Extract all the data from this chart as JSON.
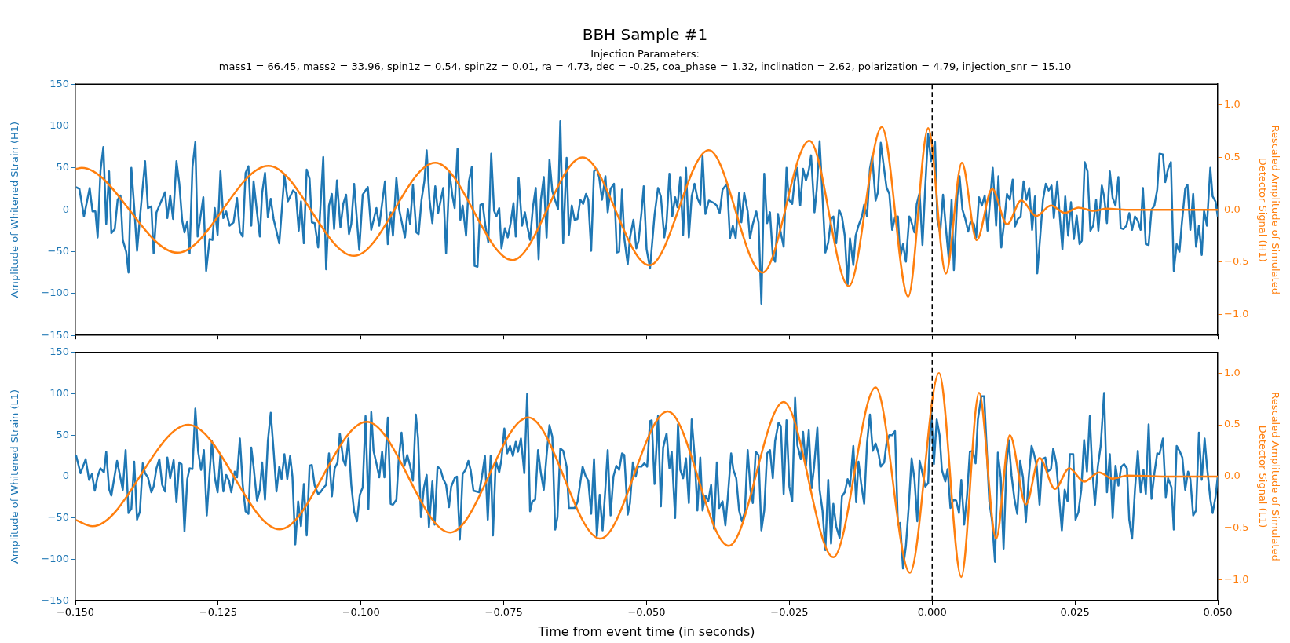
{
  "chart_data": [
    {
      "type": "line",
      "title": "BBH Sample #1",
      "subtitle": "Injection Parameters:\nmass1 = 66.45, mass2 = 33.96, spin1z = 0.54, spin2z = 0.01, ra = 4.73, dec = -0.25, coa_phase = 1.32, inclination = 2.62, polarization = 4.79, injection_snr = 15.10",
      "ylabel": "Amplitude of Whitened Strain (H1)",
      "y2label": "Rescaled Amplitude of Simulated\nDetector Signal (H1)",
      "xlim": [
        -0.15,
        0.05
      ],
      "xticks": [
        {
          "value": -0.15,
          "label": null
        },
        {
          "value": -0.125,
          "label": null
        },
        {
          "value": -0.1,
          "label": null
        },
        {
          "value": -0.075,
          "label": null
        },
        {
          "value": -0.05,
          "label": null
        },
        {
          "value": -0.025,
          "label": null
        },
        {
          "value": 0,
          "label": null
        },
        {
          "value": 0.025,
          "label": null
        },
        {
          "value": 0.05,
          "label": null
        }
      ],
      "ylim": [
        -150,
        150
      ],
      "yticks": [
        {
          "value": -150,
          "label": "−150"
        },
        {
          "value": -100,
          "label": "−100"
        },
        {
          "value": -50,
          "label": "−50"
        },
        0,
        50,
        100,
        150
      ],
      "y2lim": [
        -1.2,
        1.2
      ],
      "y2ticks": [
        {
          "value": -1,
          "label": "−1.0"
        },
        {
          "value": -0.5,
          "label": "−0.5"
        },
        {
          "value": 0,
          "label": "0.0"
        },
        {
          "value": 0.5,
          "label": "0.5"
        },
        {
          "value": 1,
          "label": "1.0"
        }
      ],
      "tick_labels": "y",
      "ref_lines": [
        {
          "axis": "x",
          "value": 0,
          "color": "#000000",
          "line_style": "dashed"
        }
      ],
      "series": [
        {
          "color": "#1f77b4",
          "x": [
            -0.1499,
            -0.1493,
            -0.1485,
            -0.1475,
            -0.147,
            -0.1465,
            -0.1461,
            -0.1456,
            -0.1451,
            -0.1446,
            -0.1441,
            -0.1437,
            -0.1431,
            -0.1426,
            -0.1421,
            -0.1417,
            -0.1411,
            -0.1407,
            -0.1402,
            -0.1397,
            -0.1392,
            -0.1386,
            -0.1378,
            -0.1373,
            -0.1367,
            -0.1363,
            -0.1358,
            -0.1343,
            -0.1339,
            -0.1334,
            -0.1329,
            -0.1323,
            -0.1318,
            -0.1313,
            -0.1309,
            -0.1304,
            -0.13,
            -0.1295,
            -0.129,
            -0.1286,
            -0.1276,
            -0.1271,
            -0.1265,
            -0.126,
            -0.1256,
            -0.1251,
            -0.1246,
            -0.1241,
            -0.1236,
            -0.123,
            -0.1223,
            -0.1217,
            -0.1212,
            -0.1207,
            -0.1202,
            -0.1197,
            -0.1192,
            -0.1188,
            -0.1182,
            -0.1177,
            -0.1173,
            -0.1168,
            -0.1163,
            -0.1158,
            -0.1153,
            -0.1143,
            -0.1134,
            -0.1128,
            -0.1119,
            -0.1114,
            -0.1109,
            -0.1105,
            -0.11,
            -0.1095,
            -0.109,
            -0.1086,
            -0.1081,
            -0.1075,
            -0.1066,
            -0.1061,
            -0.1056,
            -0.1051,
            -0.1047,
            -0.1042,
            -0.1036,
            -0.1031,
            -0.1026,
            -0.1021,
            -0.1017,
            -0.1012,
            -0.1003,
            -0.0997,
            -0.0988,
            -0.0982,
            -0.0973,
            -0.0968,
            -0.0958,
            -0.0953,
            -0.0948,
            -0.0944,
            -0.0938,
            -0.0933,
            -0.0923,
            -0.0918,
            -0.0914,
            -0.0909,
            -0.0903,
            -0.0899,
            -0.0894,
            -0.0889,
            -0.0885,
            -0.088,
            -0.0875,
            -0.087,
            -0.0865,
            -0.0856,
            -0.0851,
            -0.0845,
            -0.084,
            -0.0836,
            -0.0831,
            -0.0826,
            -0.0822,
            -0.0816,
            -0.0811,
            -0.0806,
            -0.0801,
            -0.0796,
            -0.0791,
            -0.0787,
            -0.0782,
            -0.0777,
            -0.0772,
            -0.0767,
            -0.0763,
            -0.0758,
            -0.0754,
            -0.0748,
            -0.0743,
            -0.0738,
            -0.0733,
            -0.0729,
            -0.0724,
            -0.0718,
            -0.0713,
            -0.0709,
            -0.0704,
            -0.0699,
            -0.0694,
            -0.0689,
            -0.0685,
            -0.068,
            -0.0675,
            -0.067,
            -0.0665,
            -0.066,
            -0.0655,
            -0.0651,
            -0.0646,
            -0.064,
            -0.0636,
            -0.0631,
            -0.0626,
            -0.0621,
            -0.0616,
            -0.0611,
            -0.0606,
            -0.0602,
            -0.0597,
            -0.0592,
            -0.0587,
            -0.0583,
            -0.0578,
            -0.0572,
            -0.0568,
            -0.0563,
            -0.0557,
            -0.0552,
            -0.0548,
            -0.0543,
            -0.0539,
            -0.0533,
            -0.0529,
            -0.0523,
            -0.0518,
            -0.0514,
            -0.0509,
            -0.0505,
            -0.05,
            -0.0494,
            -0.0486,
            -0.048,
            -0.0475,
            -0.0469,
            -0.0465,
            -0.046,
            -0.0455,
            -0.045,
            -0.0446,
            -0.0441,
            -0.0436,
            -0.0431,
            -0.0426,
            -0.0421,
            -0.0416,
            -0.0411,
            -0.0406,
            -0.0402,
            -0.0397,
            -0.0391,
            -0.0382,
            -0.0377,
            -0.0372,
            -0.0367,
            -0.0359,
            -0.0354,
            -0.0349,
            -0.0344,
            -0.0338,
            -0.0334,
            -0.0329,
            -0.0323,
            -0.0319,
            -0.0314,
            -0.0308,
            -0.0304,
            -0.0299,
            -0.0294,
            -0.0289,
            -0.0284,
            -0.0279,
            -0.0275,
            -0.027,
            -0.0265,
            -0.026,
            -0.0255,
            -0.0251,
            -0.0245,
            -0.0241,
            -0.0236,
            -0.0231,
            -0.0226,
            -0.0221,
            -0.0216,
            -0.0212,
            -0.0206,
            -0.0202,
            -0.0197,
            -0.0192,
            -0.0187,
            -0.0182,
            -0.0177,
            -0.0173,
            -0.0168,
            -0.0163,
            -0.0158,
            -0.0153,
            -0.0148,
            -0.0144,
            -0.0138,
            -0.0134,
            -0.0129,
            -0.0123,
            -0.0119,
            -0.0114,
            -0.0109,
            -0.0105,
            -0.0099,
            -0.0095,
            -0.009,
            -0.0084,
            -0.008,
            -0.0075,
            -0.007,
            -0.0065,
            -0.006,
            -0.0056,
            -0.0051,
            -0.0046,
            -0.004,
            -0.0037,
            -0.0031,
            -0.0027,
            -0.0022,
            -0.0017,
            -0.0012,
            -0.0007,
            -0.0002,
            0.0005,
            0.0009,
            0.0014,
            0.0019,
            0.0024,
            0.0029,
            0.0034,
            0.0038,
            0.0044,
            0.0048,
            0.0053,
            0.0058,
            0.0063,
            0.0067,
            0.0073,
            0.0077,
            0.0082,
            0.0087,
            0.0092,
            0.0097,
            0.0102,
            0.0106,
            0.0112,
            0.0116,
            0.0121,
            0.0126,
            0.0131,
            0.0136,
            0.0141,
            0.0145,
            0.015,
            0.0155,
            0.016,
            0.0165,
            0.017,
            0.0175,
            0.018,
            0.0184,
            0.0189,
            0.0194,
            0.0199,
            0.0204,
            0.0209,
            0.0213,
            0.0219,
            0.0223,
            0.0228,
            0.0233,
            0.0238,
            0.0243,
            0.0248,
            0.0253,
            0.0258,
            0.0262,
            0.0267,
            0.0272,
            0.0277,
            0.0282,
            0.0287,
            0.0291,
            0.0297,
            0.0301,
            0.0306,
            0.0311,
            0.0316,
            0.0321,
            0.0326,
            0.033,
            0.0335,
            0.034,
            0.0345,
            0.035,
            0.0355,
            0.036,
            0.0365,
            0.0369,
            0.0374,
            0.0379,
            0.0384,
            0.0389,
            0.0394,
            0.0398,
            0.0404,
            0.0408,
            0.0413,
            0.0418,
            0.0423,
            0.0428,
            0.0433,
            0.0437,
            0.0443,
            0.0447,
            0.0452,
            0.0457,
            0.0462,
            0.0467,
            0.0472,
            0.0476,
            0.0481,
            0.0487,
            0.0491,
            0.0496,
            0.05
          ],
          "values": [
            27,
            25,
            -8,
            26,
            -2,
            -2,
            -33,
            47,
            75,
            -17,
            46,
            -28,
            -23,
            12,
            17,
            -36,
            -50,
            -75,
            50,
            3,
            -49,
            -2,
            58,
            2,
            4,
            -52,
            -3,
            21,
            -10,
            17,
            -11,
            58,
            31,
            -13,
            -27,
            -14,
            -52,
            51,
            81,
            -32,
            15,
            -73,
            -35,
            -36,
            2,
            -30,
            46,
            -10,
            -2,
            -19,
            -15,
            14,
            -26,
            -32,
            44,
            52,
            -19,
            34,
            -3,
            -32,
            20,
            44,
            -9,
            13,
            -11,
            -40,
            41,
            10,
            23,
            20,
            -25,
            10,
            -40,
            48,
            37,
            -15,
            -16,
            -45,
            63,
            -71,
            5,
            19,
            -23,
            35,
            -21,
            7,
            18,
            -29,
            -17,
            31,
            -48,
            18,
            27,
            -24,
            2,
            -19,
            34,
            -41,
            -3,
            -31,
            38,
            0,
            -33,
            1,
            -17,
            30,
            -27,
            -29,
            12,
            34,
            71,
            12,
            -16,
            28,
            -4,
            26,
            -52,
            45,
            17,
            2,
            73,
            -12,
            5,
            -31,
            34,
            51,
            -67,
            -68,
            6,
            7,
            -20,
            -39,
            67,
            -1,
            -8,
            2,
            -46,
            -22,
            -33,
            -16,
            8,
            -32,
            38,
            -19,
            -3,
            -19,
            -36,
            3,
            26,
            -59,
            12,
            39,
            -33,
            60,
            22,
            11,
            1,
            106,
            -40,
            62,
            -30,
            5,
            -12,
            -11,
            12,
            7,
            19,
            12,
            -49,
            46,
            49,
            39,
            12,
            40,
            -3,
            25,
            31,
            -51,
            -50,
            24,
            -34,
            -65,
            -33,
            -12,
            -46,
            -37,
            -4,
            28,
            -47,
            -70,
            -6,
            26,
            16,
            -33,
            -15,
            43,
            -8,
            15,
            3,
            39,
            -30,
            50,
            -33,
            16,
            31,
            14,
            6,
            65,
            -5,
            11,
            8,
            5,
            -4,
            24,
            31,
            -34,
            -19,
            -34,
            20,
            -15,
            20,
            -2,
            -34,
            -17,
            -2,
            -15,
            -112,
            43,
            -16,
            -3,
            -55,
            -62,
            -5,
            -28,
            -44,
            50,
            12,
            7,
            34,
            50,
            5,
            49,
            35,
            47,
            65,
            -3,
            25,
            82,
            16,
            -51,
            -39,
            -11,
            -8,
            -40,
            0,
            -8,
            -31,
            -89,
            -34,
            -66,
            -31,
            -19,
            -8,
            6,
            -8,
            49,
            64,
            11,
            21,
            80,
            48,
            27,
            19,
            -24,
            -9,
            -8,
            -57,
            -41,
            -62,
            -8,
            -13,
            -27,
            7,
            20,
            -42,
            29,
            91,
            58,
            81,
            -11,
            -28,
            18,
            -22,
            -58,
            12,
            -72,
            16,
            40,
            0,
            -11,
            -26,
            -15,
            -17,
            -33,
            15,
            5,
            17,
            -25,
            16,
            50,
            -19,
            40,
            -45,
            -15,
            19,
            12,
            36,
            -20,
            -11,
            -8,
            34,
            12,
            26,
            -24,
            16,
            -76,
            -33,
            12,
            31,
            23,
            29,
            -10,
            34,
            -4,
            -47,
            16,
            -31,
            9,
            -35,
            -7,
            -41,
            -37,
            57,
            46,
            -25,
            -19,
            12,
            -25,
            29,
            16,
            -16,
            46,
            14,
            5,
            39,
            -22,
            -23,
            -19,
            -4,
            -24,
            -8,
            -13,
            -24,
            26,
            -41,
            -42,
            0,
            5,
            24,
            67,
            66,
            33,
            49,
            57,
            -73,
            -41,
            -50,
            -17,
            25,
            30,
            -24,
            19,
            -44,
            -19,
            -54,
            -1,
            -19,
            50,
            16,
            10,
            -8
          ]
        },
        {
          "color": "#ff7f0e",
          "axis": "y2",
          "x": [
            -0.1499,
            -0.1489,
            -0.1321,
            -0.1162,
            -0.1012,
            -0.087,
            -0.0735,
            -0.0612,
            -0.0495,
            -0.0391,
            -0.0297,
            -0.0215,
            -0.0146,
            -0.0088,
            -0.0042,
            -0.0007,
            0.0024,
            0.0052,
            0.0078,
            0.0105,
            0.0131,
            0.0156,
            0.0182,
            0.0208,
            0.0232,
            0.0256,
            0.0282,
            0.0306,
            0.034,
            0.05
          ],
          "values": [
            0.39,
            0.4,
            -0.41,
            0.42,
            -0.44,
            0.45,
            -0.48,
            0.5,
            -0.53,
            0.57,
            -0.6,
            0.66,
            -0.73,
            0.79,
            -0.83,
            0.78,
            -0.61,
            0.45,
            -0.29,
            0.2,
            -0.14,
            0.09,
            -0.06,
            0.04,
            -0.03,
            0.02,
            -0.01,
            0.01,
            0,
            0
          ]
        }
      ]
    },
    {
      "type": "line",
      "xlabel": "Time from event time (in seconds)",
      "ylabel": "Amplitude of Whitened Strain (L1)",
      "y2label": "Rescaled Amplitude of Simulated\nDetector Signal (L1)",
      "xlim": [
        -0.15,
        0.05
      ],
      "xticks": [
        {
          "value": -0.15,
          "label": "−0.150"
        },
        {
          "value": -0.125,
          "label": "−0.125"
        },
        {
          "value": -0.1,
          "label": "−0.100"
        },
        {
          "value": -0.075,
          "label": "−0.075"
        },
        {
          "value": -0.05,
          "label": "−0.050"
        },
        {
          "value": -0.025,
          "label": "−0.025"
        },
        {
          "value": 0,
          "label": "0.000"
        },
        {
          "value": 0.025,
          "label": "0.025"
        },
        {
          "value": 0.05,
          "label": "0.050"
        }
      ],
      "ylim": [
        -150,
        150
      ],
      "yticks": [
        {
          "value": -150,
          "label": "−150"
        },
        {
          "value": -100,
          "label": "−100"
        },
        {
          "value": -50,
          "label": "−50"
        },
        0,
        50,
        100,
        150
      ],
      "y2lim": [
        -1.2,
        1.2
      ],
      "y2ticks": [
        {
          "value": -1,
          "label": "−1.0"
        },
        {
          "value": -0.5,
          "label": "−0.5"
        },
        {
          "value": 0,
          "label": "0.0"
        },
        {
          "value": 0.5,
          "label": "0.5"
        },
        {
          "value": 1,
          "label": "1.0"
        }
      ],
      "ref_lines": [
        {
          "axis": "x",
          "value": 0,
          "color": "#000000",
          "line_style": "dashed"
        }
      ],
      "series": [
        {
          "color": "#1f77b4",
          "x": [
            -0.1499,
            -0.1491,
            -0.1482,
            -0.1476,
            -0.1471,
            -0.1466,
            -0.1461,
            -0.1456,
            -0.145,
            -0.1446,
            -0.1441,
            -0.1437,
            -0.1427,
            -0.1417,
            -0.1412,
            -0.1407,
            -0.1402,
            -0.1397,
            -0.1392,
            -0.1387,
            -0.1382,
            -0.1378,
            -0.1373,
            -0.1367,
            -0.1363,
            -0.1358,
            -0.1353,
            -0.1348,
            -0.1343,
            -0.1339,
            -0.1334,
            -0.1328,
            -0.1323,
            -0.1318,
            -0.1314,
            -0.1309,
            -0.1304,
            -0.13,
            -0.1295,
            -0.129,
            -0.1285,
            -0.128,
            -0.1275,
            -0.127,
            -0.1265,
            -0.1261,
            -0.1256,
            -0.1251,
            -0.1246,
            -0.1241,
            -0.1236,
            -0.1231,
            -0.1227,
            -0.1221,
            -0.1217,
            -0.1212,
            -0.1207,
            -0.1202,
            -0.1197,
            -0.1192,
            -0.1188,
            -0.1182,
            -0.1177,
            -0.1173,
            -0.1168,
            -0.1163,
            -0.1158,
            -0.1153,
            -0.1148,
            -0.1143,
            -0.1139,
            -0.1134,
            -0.1129,
            -0.1124,
            -0.112,
            -0.1115,
            -0.111,
            -0.1105,
            -0.11,
            -0.1095,
            -0.109,
            -0.1086,
            -0.1081,
            -0.1075,
            -0.1071,
            -0.1066,
            -0.1061,
            -0.1056,
            -0.1051,
            -0.1046,
            -0.1041,
            -0.1037,
            -0.1031,
            -0.1027,
            -0.1022,
            -0.1017,
            -0.1012,
            -0.1007,
            -0.1002,
            -0.0997,
            -0.0992,
            -0.0987,
            -0.0982,
            -0.0978,
            -0.0973,
            -0.0968,
            -0.0963,
            -0.0959,
            -0.0953,
            -0.0948,
            -0.0944,
            -0.0938,
            -0.0934,
            -0.0929,
            -0.0924,
            -0.0919,
            -0.0914,
            -0.0909,
            -0.0904,
            -0.09,
            -0.0895,
            -0.089,
            -0.0885,
            -0.0881,
            -0.0875,
            -0.0871,
            -0.0866,
            -0.0861,
            -0.0856,
            -0.0851,
            -0.0846,
            -0.0842,
            -0.0836,
            -0.0832,
            -0.0827,
            -0.0822,
            -0.0817,
            -0.0812,
            -0.0808,
            -0.0803,
            -0.0793,
            -0.0788,
            -0.0783,
            -0.0778,
            -0.0773,
            -0.0769,
            -0.0764,
            -0.0758,
            -0.0754,
            -0.0749,
            -0.0744,
            -0.0739,
            -0.0734,
            -0.0729,
            -0.0725,
            -0.072,
            -0.0714,
            -0.0709,
            -0.0704,
            -0.07,
            -0.0695,
            -0.069,
            -0.0685,
            -0.068,
            -0.0675,
            -0.067,
            -0.0665,
            -0.066,
            -0.0656,
            -0.0651,
            -0.0646,
            -0.064,
            -0.0636,
            -0.0626,
            -0.0621,
            -0.0612,
            -0.0607,
            -0.0602,
            -0.0597,
            -0.0592,
            -0.0587,
            -0.0582,
            -0.0577,
            -0.0572,
            -0.0568,
            -0.0563,
            -0.0558,
            -0.0553,
            -0.0548,
            -0.0543,
            -0.0539,
            -0.0533,
            -0.0529,
            -0.0524,
            -0.0519,
            -0.0515,
            -0.0509,
            -0.0504,
            -0.0499,
            -0.0494,
            -0.0491,
            -0.0486,
            -0.048,
            -0.0475,
            -0.0471,
            -0.0465,
            -0.046,
            -0.0456,
            -0.045,
            -0.0445,
            -0.0441,
            -0.0436,
            -0.0431,
            -0.0426,
            -0.0421,
            -0.0416,
            -0.0411,
            -0.0406,
            -0.0402,
            -0.0397,
            -0.0392,
            -0.0387,
            -0.0382,
            -0.0377,
            -0.0373,
            -0.0367,
            -0.0362,
            -0.0358,
            -0.0352,
            -0.0348,
            -0.0343,
            -0.0338,
            -0.0333,
            -0.0328,
            -0.0323,
            -0.0318,
            -0.0314,
            -0.0309,
            -0.0304,
            -0.0299,
            -0.0294,
            -0.0289,
            -0.0284,
            -0.0279,
            -0.0275,
            -0.0269,
            -0.0265,
            -0.026,
            -0.0255,
            -0.025,
            -0.0245,
            -0.024,
            -0.0236,
            -0.023,
            -0.0226,
            -0.0221,
            -0.0216,
            -0.0211,
            -0.0207,
            -0.0201,
            -0.0197,
            -0.0192,
            -0.0187,
            -0.0182,
            -0.0177,
            -0.0173,
            -0.0168,
            -0.0162,
            -0.0158,
            -0.0153,
            -0.0148,
            -0.0144,
            -0.0138,
            -0.0133,
            -0.0129,
            -0.0124,
            -0.0119,
            -0.0114,
            -0.0109,
            -0.0104,
            -0.0099,
            -0.0094,
            -0.009,
            -0.0084,
            -0.008,
            -0.0075,
            -0.007,
            -0.0065,
            -0.006,
            -0.0056,
            -0.0051,
            -0.0046,
            -0.0041,
            -0.0036,
            -0.0031,
            -0.0026,
            -0.0022,
            -0.0017,
            -0.0012,
            -0.0007,
            -0.0002,
            0.0003,
            0.0008,
            0.0013,
            0.0017,
            0.0023,
            0.0027,
            0.0032,
            0.0037,
            0.0042,
            0.0047,
            0.0051,
            0.0056,
            0.0061,
            0.0066,
            0.0071,
            0.0076,
            0.008,
            0.0086,
            0.0091,
            0.0095,
            0.01,
            0.0105,
            0.011,
            0.0115,
            0.012,
            0.0125,
            0.013,
            0.0134,
            0.0139,
            0.0144,
            0.0149,
            0.0154,
            0.0159,
            0.0164,
            0.0169,
            0.0174,
            0.0178,
            0.0183,
            0.0188,
            0.0193,
            0.0198,
            0.0202,
            0.0208,
            0.0212,
            0.0217,
            0.0222,
            0.0227,
            0.0232,
            0.0237,
            0.0241,
            0.0247,
            0.0251,
            0.0256,
            0.0261,
            0.0266,
            0.0271,
            0.0276,
            0.028,
            0.0285,
            0.029,
            0.0295,
            0.0301,
            0.0306,
            0.0311,
            0.0316,
            0.0321,
            0.0326,
            0.0331,
            0.0336,
            0.0341,
            0.0345,
            0.035,
            0.0355,
            0.036,
            0.0365,
            0.037,
            0.0374,
            0.0379,
            0.0384,
            0.0389,
            0.0394,
            0.0398,
            0.0404,
            0.0409,
            0.0413,
            0.0419,
            0.0423,
            0.0428,
            0.0433,
            0.0438,
            0.0443,
            0.0448,
            0.0452,
            0.0457,
            0.0462,
            0.0467,
            0.0472,
            0.0477,
            0.0481,
            0.0487,
            0.0491,
            0.0496,
            0.05
          ],
          "values": [
            26,
            4,
            21,
            -4,
            3,
            -17,
            0,
            10,
            5,
            30,
            -15,
            -23,
            19,
            -16,
            32,
            -44,
            -39,
            18,
            -52,
            -42,
            16,
            4,
            -1,
            -19,
            -12,
            10,
            21,
            -10,
            -18,
            23,
            -2,
            20,
            -31,
            17,
            15,
            -66,
            -3,
            10,
            9,
            82,
            30,
            8,
            32,
            -47,
            4,
            43,
            -1,
            -19,
            26,
            -18,
            2,
            -5,
            -19,
            6,
            -1,
            46,
            -10,
            -42,
            -45,
            35,
            12,
            -29,
            -16,
            17,
            -28,
            43,
            77,
            32,
            -18,
            12,
            -3,
            27,
            -3,
            25,
            0,
            -82,
            -30,
            -60,
            -9,
            -71,
            13,
            14,
            -11,
            -21,
            -19,
            -14,
            -10,
            28,
            -24,
            10,
            17,
            52,
            20,
            13,
            46,
            -10,
            -42,
            -54,
            -22,
            -13,
            73,
            -39,
            78,
            31,
            16,
            -1,
            30,
            -1,
            71,
            -33,
            -34,
            -28,
            20,
            53,
            13,
            26,
            13,
            -5,
            75,
            46,
            -49,
            -14,
            2,
            -61,
            -6,
            -58,
            12,
            9,
            -3,
            -10,
            -37,
            -12,
            -2,
            0,
            -76,
            3,
            8,
            19,
            8,
            -17,
            -19,
            1,
            25,
            -52,
            25,
            -71,
            19,
            5,
            21,
            58,
            28,
            37,
            25,
            42,
            30,
            46,
            4,
            100,
            -42,
            -30,
            -28,
            32,
            4,
            -16,
            26,
            62,
            48,
            -64,
            -49,
            34,
            31,
            12,
            -38,
            -38,
            -31,
            12,
            1,
            -5,
            -45,
            21,
            -72,
            -22,
            -65,
            -13,
            32,
            -47,
            0,
            13,
            8,
            28,
            26,
            -46,
            -32,
            17,
            0,
            12,
            12,
            16,
            12,
            67,
            68,
            -9,
            73,
            -36,
            35,
            52,
            10,
            30,
            -50,
            63,
            8,
            -2,
            22,
            -32,
            69,
            26,
            -41,
            23,
            -41,
            -23,
            -30,
            -10,
            -63,
            17,
            -38,
            -30,
            -59,
            -27,
            28,
            8,
            -2,
            -41,
            -54,
            -43,
            32,
            -16,
            -32,
            30,
            26,
            -65,
            -41,
            28,
            32,
            -2,
            43,
            65,
            61,
            -21,
            68,
            -12,
            -30,
            95,
            38,
            21,
            54,
            13,
            56,
            -14,
            10,
            59,
            -16,
            -41,
            -89,
            -4,
            -81,
            -33,
            -60,
            -74,
            -24,
            -19,
            -3,
            -12,
            37,
            -31,
            18,
            -10,
            -33,
            41,
            75,
            31,
            40,
            28,
            12,
            17,
            40,
            50,
            50,
            55,
            -58,
            -56,
            -111,
            -84,
            -36,
            22,
            -3,
            -54,
            19,
            4,
            -12,
            -8,
            85,
            15,
            69,
            50,
            8,
            -6,
            9,
            -38,
            -28,
            -29,
            -44,
            -4,
            -58,
            -23,
            30,
            31,
            16,
            69,
            97,
            97,
            41,
            -30,
            -54,
            -103,
            29,
            -1,
            -87,
            13,
            44,
            1,
            -27,
            -45,
            19,
            -1,
            -55,
            -1,
            37,
            28,
            13,
            -34,
            21,
            23,
            6,
            9,
            34,
            17,
            -23,
            -65,
            -16,
            -30,
            27,
            27,
            -52,
            -43,
            -16,
            44,
            6,
            73,
            12,
            -34,
            12,
            37,
            101,
            -19,
            27,
            -50,
            13,
            -11,
            12,
            15,
            10,
            -52,
            -75,
            -16,
            31,
            -19,
            8,
            -21,
            63,
            -27,
            4,
            28,
            27,
            46,
            -25,
            -2,
            -13,
            -64,
            37,
            31,
            23,
            -16,
            6,
            -3,
            -47,
            -41,
            53,
            -4,
            46,
            13,
            -27,
            -44,
            -25,
            0
          ]
        },
        {
          "color": "#ff7f0e",
          "axis": "y2",
          "x": [
            -0.1499,
            -0.147,
            -0.1302,
            -0.1142,
            -0.099,
            -0.0844,
            -0.0707,
            -0.0581,
            -0.0463,
            -0.0356,
            -0.026,
            -0.0173,
            -0.0099,
            -0.0039,
            0.0012,
            0.0051,
            0.0082,
            0.0112,
            0.0136,
            0.0164,
            0.0188,
            0.0215,
            0.024,
            0.0266,
            0.0292,
            0.0316,
            0.0342,
            0.0404,
            0.05
          ],
          "values": [
            -0.42,
            -0.48,
            0.5,
            -0.51,
            0.53,
            -0.54,
            0.57,
            -0.6,
            0.63,
            -0.67,
            0.72,
            -0.78,
            0.86,
            -0.93,
            1.0,
            -0.97,
            0.81,
            -0.6,
            0.4,
            -0.27,
            0.18,
            -0.12,
            0.08,
            -0.05,
            0.04,
            -0.02,
            0.01,
            0,
            0
          ]
        }
      ]
    }
  ]
}
